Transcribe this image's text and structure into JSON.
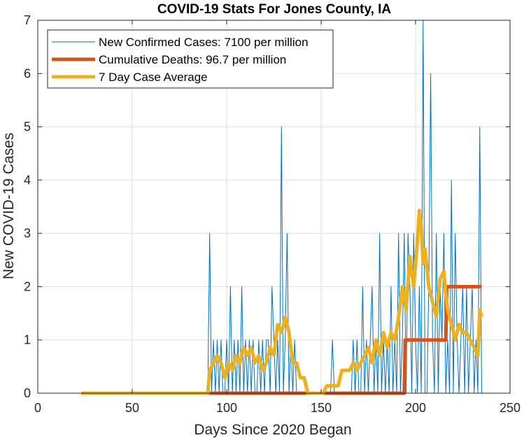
{
  "chart_data": {
    "type": "line",
    "title": "COVID-19 Stats For Jones County, IA",
    "xlabel": "Days Since 2020 Began",
    "ylabel": "New COVID-19 Cases",
    "xlim": [
      0,
      250
    ],
    "ylim": [
      0,
      7
    ],
    "xticks": [
      0,
      50,
      100,
      150,
      200,
      250
    ],
    "yticks": [
      0,
      1,
      2,
      3,
      4,
      5,
      6,
      7
    ],
    "grid": true,
    "legend_position": "top-left",
    "series": [
      {
        "name": "New Confirmed Cases: 7100 per million",
        "color": "#0072BD",
        "line_width": "thin",
        "x": [
          23,
          24,
          25,
          26,
          27,
          28,
          29,
          30,
          31,
          32,
          33,
          34,
          35,
          36,
          37,
          38,
          39,
          40,
          41,
          42,
          43,
          44,
          45,
          46,
          47,
          48,
          49,
          50,
          51,
          52,
          53,
          54,
          55,
          56,
          57,
          58,
          59,
          60,
          61,
          62,
          63,
          64,
          65,
          66,
          67,
          68,
          69,
          70,
          71,
          72,
          73,
          74,
          75,
          76,
          77,
          78,
          79,
          80,
          81,
          82,
          83,
          84,
          85,
          86,
          87,
          88,
          89,
          90,
          91,
          92,
          93,
          94,
          95,
          96,
          97,
          98,
          99,
          100,
          101,
          102,
          103,
          104,
          105,
          106,
          107,
          108,
          109,
          110,
          111,
          112,
          113,
          114,
          115,
          116,
          117,
          118,
          119,
          120,
          121,
          122,
          123,
          124,
          125,
          126,
          127,
          128,
          129,
          130,
          131,
          132,
          133,
          134,
          135,
          136,
          137,
          138,
          139,
          140,
          141,
          142,
          143,
          144,
          145,
          146,
          147,
          148,
          149,
          150,
          151,
          152,
          153,
          154,
          155,
          156,
          157,
          158,
          159,
          160,
          161,
          162,
          163,
          164,
          165,
          166,
          167,
          168,
          169,
          170,
          171,
          172,
          173,
          174,
          175,
          176,
          177,
          178,
          179,
          180,
          181,
          182,
          183,
          184,
          185,
          186,
          187,
          188,
          189,
          190,
          191,
          192,
          193,
          194,
          195,
          196,
          197,
          198,
          199,
          200,
          201,
          202,
          203,
          204,
          205,
          206,
          207,
          208,
          209,
          210,
          211,
          212,
          213,
          214,
          215,
          216,
          217,
          218,
          219,
          220,
          221,
          222,
          223,
          224,
          225,
          226,
          227,
          228,
          229,
          230,
          231,
          232,
          233,
          234,
          235
        ],
        "values": [
          0,
          0,
          0,
          0,
          0,
          0,
          0,
          0,
          0,
          0,
          0,
          0,
          0,
          0,
          0,
          0,
          0,
          0,
          0,
          0,
          0,
          0,
          0,
          0,
          0,
          0,
          0,
          0,
          0,
          0,
          0,
          0,
          0,
          0,
          0,
          0,
          0,
          0,
          0,
          0,
          0,
          0,
          0,
          0,
          0,
          0,
          0,
          0,
          0,
          0,
          0,
          0,
          0,
          0,
          0,
          0,
          0,
          0,
          0,
          0,
          0,
          0,
          0,
          0,
          0,
          0,
          0,
          0,
          3,
          0,
          1,
          0,
          1,
          0,
          1,
          0,
          0,
          1,
          0,
          2,
          0,
          1,
          0,
          1,
          0,
          2,
          0,
          1,
          0,
          1,
          0,
          1,
          0,
          0,
          1,
          0,
          1,
          0,
          1,
          1,
          0,
          2,
          1,
          0,
          1,
          0,
          5,
          0,
          1,
          3,
          0,
          1,
          0,
          1,
          0,
          0,
          0,
          0,
          0,
          0,
          0,
          0,
          0,
          0,
          0,
          0,
          0,
          0,
          0,
          0,
          0,
          0,
          0,
          1,
          0,
          0,
          0,
          0,
          0,
          0,
          0,
          0,
          0,
          0,
          1,
          0,
          1,
          0,
          0,
          2,
          0,
          1,
          0,
          1,
          2,
          0,
          1,
          0,
          3,
          0,
          1,
          0,
          1,
          0,
          2,
          0,
          1,
          0,
          3,
          0,
          1,
          3,
          0,
          3,
          2,
          0,
          3,
          1,
          0,
          2,
          0,
          7,
          0,
          0,
          2,
          6,
          1,
          0,
          3,
          0,
          2,
          1,
          3,
          0,
          1,
          0,
          4,
          0,
          3,
          1,
          0,
          1,
          2,
          0,
          2,
          0,
          1,
          2,
          0,
          1,
          0,
          5,
          0
        ],
        "annotations": {
          "peak": 7
        }
      },
      {
        "name": "Cumulative Deaths: 96.7 per million",
        "color": "#D95319",
        "line_width": "thick",
        "x": [
          23,
          194,
          194.5,
          216,
          216.5,
          235
        ],
        "values": [
          0,
          0,
          1,
          1,
          2,
          2
        ]
      },
      {
        "name": "7 Day Case Average",
        "color": "#EDB120",
        "line_width": "thick",
        "x": [
          23,
          90,
          91,
          93,
          95,
          97,
          99,
          101,
          103,
          105,
          107,
          109,
          111,
          113,
          115,
          117,
          119,
          121,
          123,
          125,
          127,
          129,
          131,
          133,
          135,
          137,
          139,
          141,
          143,
          145,
          147,
          149,
          151,
          153,
          155,
          157,
          159,
          161,
          163,
          165,
          167,
          169,
          171,
          173,
          175,
          177,
          179,
          181,
          183,
          185,
          187,
          189,
          191,
          193,
          195,
          197,
          199,
          201,
          202,
          203,
          204,
          205,
          207,
          209,
          211,
          213,
          215,
          216,
          217,
          219,
          221,
          223,
          225,
          227,
          229,
          231,
          233,
          234,
          235
        ],
        "values": [
          0,
          0,
          0.43,
          0.57,
          0.71,
          0.57,
          0.29,
          0.57,
          0.43,
          0.71,
          0.57,
          0.86,
          0.71,
          0.86,
          0.57,
          0.71,
          0.43,
          0.57,
          0.86,
          0.71,
          1.29,
          1.14,
          1.43,
          1.14,
          0.57,
          0.57,
          0.29,
          0.29,
          0,
          0,
          0,
          0,
          0,
          0.14,
          0.14,
          0.14,
          0.14,
          0.43,
          0.43,
          0.43,
          0.57,
          0.43,
          0.57,
          0.71,
          0.86,
          0.57,
          1.0,
          0.71,
          1.14,
          0.86,
          1.14,
          1.0,
          1.43,
          2.0,
          1.57,
          2.57,
          2.0,
          2.86,
          3.43,
          3.14,
          2.43,
          2.71,
          2.0,
          1.71,
          1.43,
          2.14,
          2.29,
          1.86,
          1.57,
          1.29,
          1.0,
          1.29,
          1.14,
          1.14,
          1.0,
          0.86,
          0.71,
          1.57,
          1.43
        ]
      }
    ]
  }
}
